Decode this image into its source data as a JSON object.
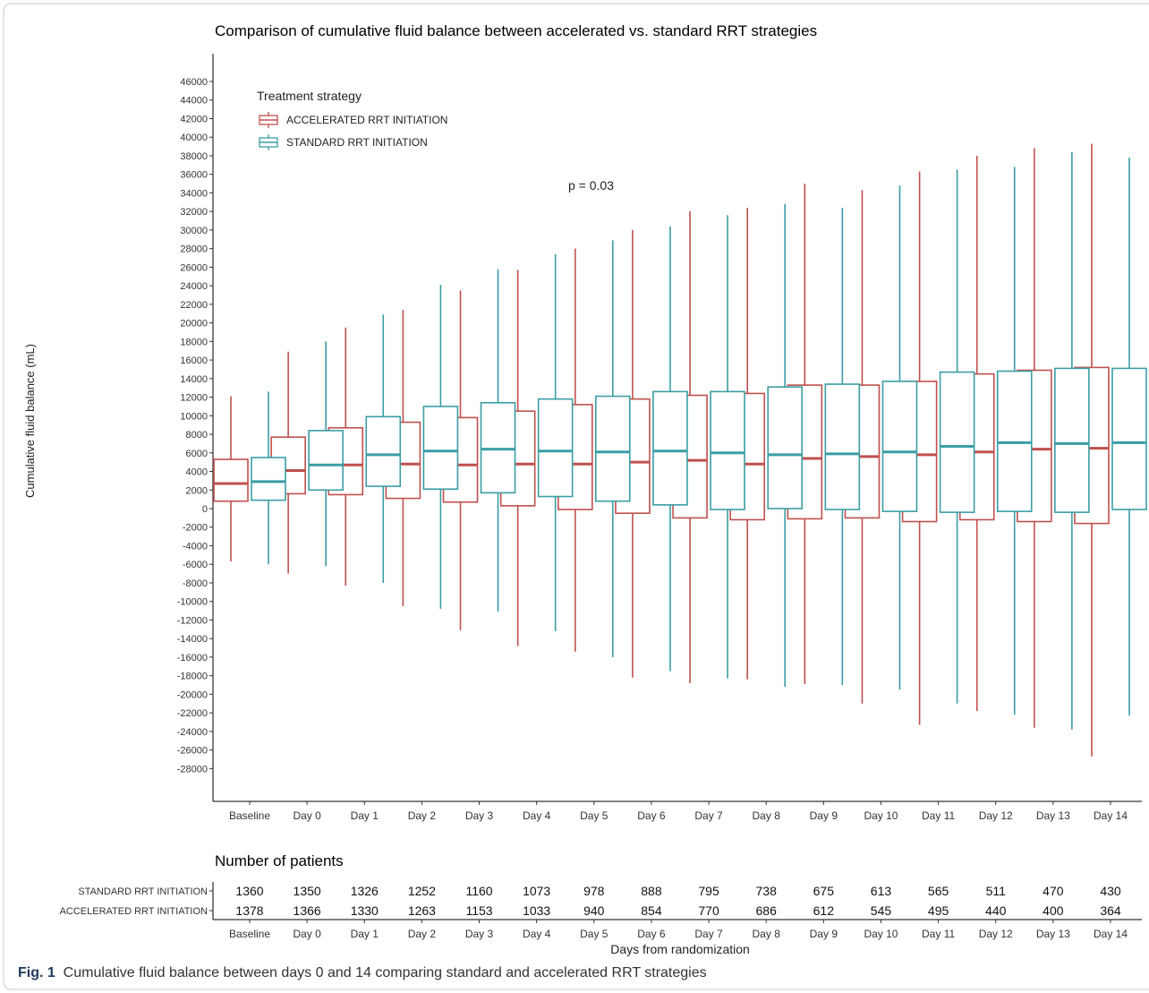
{
  "figure": {
    "caption_label": "Fig. 1",
    "caption_text": "Cumulative fluid balance between days 0 and 14 comparing standard and accelerated RRT strategies"
  },
  "chart_data": {
    "type": "box",
    "title": "Comparison of cumulative fluid balance between accelerated vs. standard RRT strategies",
    "xlabel": "",
    "ylabel": "Cumulative fluid balance (mL)",
    "ylim": [
      -28000,
      46000
    ],
    "yticks": [
      46000,
      44000,
      42000,
      40000,
      38000,
      36000,
      34000,
      32000,
      30000,
      28000,
      26000,
      24000,
      22000,
      20000,
      18000,
      16000,
      14000,
      12000,
      10000,
      8000,
      6000,
      4000,
      2000,
      0,
      -2000,
      -4000,
      -6000,
      -8000,
      -10000,
      -12000,
      -14000,
      -16000,
      -18000,
      -20000,
      -22000,
      -24000,
      -26000,
      -28000
    ],
    "categories": [
      "Baseline",
      "Day 0",
      "Day 1",
      "Day 2",
      "Day 3",
      "Day 4",
      "Day 5",
      "Day 6",
      "Day 7",
      "Day 8",
      "Day 9",
      "Day 10",
      "Day 11",
      "Day 12",
      "Day 13",
      "Day 14"
    ],
    "grid": false,
    "annotation": "p = 0.03",
    "legend": {
      "title": "Treatment strategy",
      "position": "top-left",
      "entries": [
        "ACCELERATED RRT INITIATION",
        "STANDARD RRT INITIATION"
      ]
    },
    "series": [
      {
        "name": "ACCELERATED RRT INITIATION",
        "color": "#c0504d",
        "whisker_low": [
          -5700,
          -7000,
          -8300,
          -10500,
          -13100,
          -14800,
          -15400,
          -18200,
          -18800,
          -18400,
          -18900,
          -21000,
          -23300,
          -21800,
          -23600,
          -26700
        ],
        "q1": [
          800,
          1600,
          1500,
          1100,
          700,
          300,
          -100,
          -500,
          -1000,
          -1200,
          -1100,
          -1000,
          -1400,
          -1200,
          -1400,
          -1600
        ],
        "median": [
          2700,
          4100,
          4700,
          4800,
          4700,
          4800,
          4800,
          5000,
          5200,
          4800,
          5400,
          5600,
          5800,
          6100,
          6400,
          6500
        ],
        "q3": [
          5300,
          7700,
          8700,
          9300,
          9800,
          10500,
          11200,
          11800,
          12200,
          12400,
          13300,
          13300,
          13700,
          14500,
          14900,
          15200
        ],
        "whisker_high": [
          12100,
          16900,
          19500,
          21400,
          23500,
          25700,
          28000,
          30000,
          32000,
          32400,
          35000,
          34300,
          36300,
          38000,
          38800,
          39300
        ]
      },
      {
        "name": "STANDARD RRT INITIATION",
        "color": "#3a9ea5",
        "whisker_low": [
          -6000,
          -6200,
          -8000,
          -10800,
          -11100,
          -13200,
          -16000,
          -17500,
          -18300,
          -19200,
          -19000,
          -19500,
          -21000,
          -22200,
          -23800,
          -22300
        ],
        "q1": [
          900,
          2000,
          2400,
          2100,
          1700,
          1300,
          800,
          400,
          -100,
          0,
          -100,
          -300,
          -400,
          -300,
          -400,
          -100
        ],
        "median": [
          2900,
          4700,
          5800,
          6200,
          6400,
          6200,
          6100,
          6200,
          6000,
          5800,
          5900,
          6100,
          6700,
          7100,
          7000,
          7100
        ],
        "q3": [
          5500,
          8400,
          9900,
          11000,
          11400,
          11800,
          12100,
          12600,
          12600,
          13100,
          13400,
          13700,
          14700,
          14800,
          15100,
          15100
        ],
        "whisker_high": [
          12600,
          18000,
          20900,
          24100,
          25800,
          27400,
          28900,
          30400,
          31600,
          32800,
          32400,
          34800,
          36500,
          36800,
          38400,
          37800
        ]
      }
    ],
    "risk_table": {
      "title": "Number of patients",
      "xlabel": "Days from randomization",
      "rows": [
        {
          "label": "STANDARD RRT INITIATION",
          "values": [
            1360,
            1350,
            1326,
            1252,
            1160,
            1073,
            978,
            888,
            795,
            738,
            675,
            613,
            565,
            511,
            470,
            430
          ]
        },
        {
          "label": "ACCELERATED RRT INITIATION",
          "values": [
            1378,
            1366,
            1330,
            1263,
            1153,
            1033,
            940,
            854,
            770,
            686,
            612,
            545,
            495,
            440,
            400,
            364
          ]
        }
      ]
    }
  }
}
